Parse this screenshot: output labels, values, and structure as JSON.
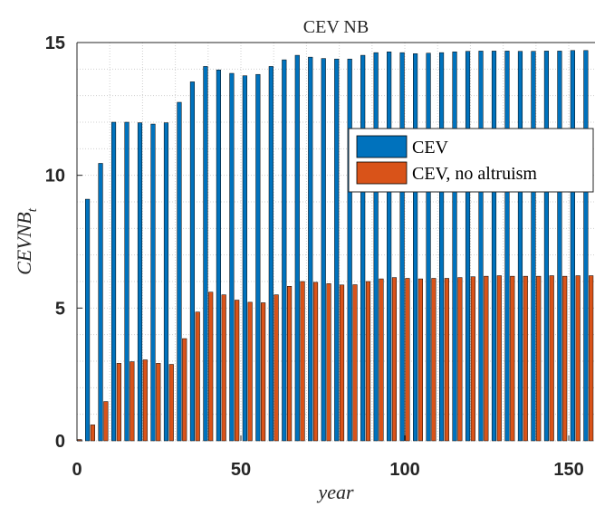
{
  "chart_data": {
    "type": "bar",
    "title": "CEV NB",
    "xlabel": "year",
    "ylabel": "CEVNB",
    "ylabel_subscript": "t",
    "xlim": [
      0,
      158
    ],
    "ylim": [
      0,
      15
    ],
    "xticks": [
      0,
      50,
      100,
      150
    ],
    "yticks": [
      0,
      5,
      10,
      15
    ],
    "grid": "minor dotted",
    "legend_position": "right",
    "x": [
      0,
      4,
      8,
      12,
      16,
      20,
      24,
      28,
      32,
      36,
      40,
      44,
      48,
      52,
      56,
      60,
      64,
      68,
      72,
      76,
      80,
      84,
      88,
      92,
      96,
      100,
      104,
      108,
      112,
      116,
      120,
      124,
      128,
      132,
      136,
      140,
      144,
      148,
      152,
      156
    ],
    "series": [
      {
        "name": "CEV",
        "color": "#0072BD",
        "values": [
          0,
          9.1,
          10.45,
          12.0,
          12.0,
          11.98,
          11.93,
          11.98,
          12.75,
          13.52,
          14.1,
          13.97,
          13.84,
          13.75,
          13.8,
          14.1,
          14.35,
          14.52,
          14.45,
          14.4,
          14.38,
          14.38,
          14.52,
          14.62,
          14.65,
          14.62,
          14.58,
          14.6,
          14.62,
          14.65,
          14.67,
          14.68,
          14.68,
          14.68,
          14.67,
          14.67,
          14.68,
          14.68,
          14.7,
          14.7
        ]
      },
      {
        "name": "CEV, no altruism",
        "color": "#D95319",
        "values": [
          0.05,
          0.6,
          1.48,
          2.92,
          2.98,
          3.05,
          2.92,
          2.88,
          3.85,
          4.85,
          5.6,
          5.5,
          5.3,
          5.22,
          5.2,
          5.5,
          5.82,
          6.0,
          5.97,
          5.92,
          5.87,
          5.88,
          6.0,
          6.1,
          6.15,
          6.12,
          6.1,
          6.12,
          6.12,
          6.15,
          6.18,
          6.2,
          6.22,
          6.2,
          6.2,
          6.2,
          6.22,
          6.2,
          6.22,
          6.22
        ]
      }
    ]
  }
}
